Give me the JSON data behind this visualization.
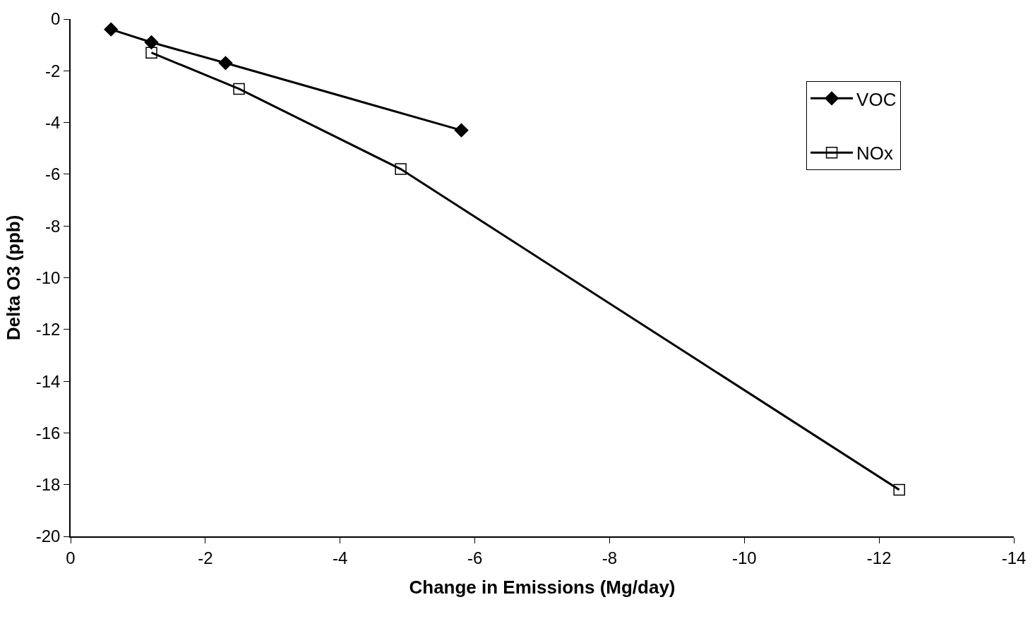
{
  "chart_data": {
    "type": "line",
    "xlabel": "Change in Emissions (Mg/day)",
    "ylabel": "Delta O3 (ppb)",
    "xlim": [
      0,
      -14
    ],
    "xticks": [
      0,
      -2,
      -4,
      -6,
      -8,
      -10,
      -12,
      -14
    ],
    "ylim": [
      -20,
      0
    ],
    "yticks": [
      0,
      -2,
      -4,
      -6,
      -8,
      -10,
      -12,
      -14,
      -16,
      -18,
      -20
    ],
    "legend": "top right",
    "line_style": "solid",
    "series": [
      {
        "name": "VOC",
        "color": "#000000",
        "marker": "diamond",
        "x": [
          -0.6,
          -1.2,
          -2.3,
          -5.8
        ],
        "values": [
          -0.4,
          -0.9,
          -1.7,
          -4.3
        ]
      },
      {
        "name": "NOx",
        "color": "#000000",
        "marker": "square-open",
        "x": [
          -1.2,
          -2.5,
          -4.9,
          -12.3
        ],
        "values": [
          -1.3,
          -2.7,
          -5.8,
          -18.2
        ]
      }
    ]
  }
}
